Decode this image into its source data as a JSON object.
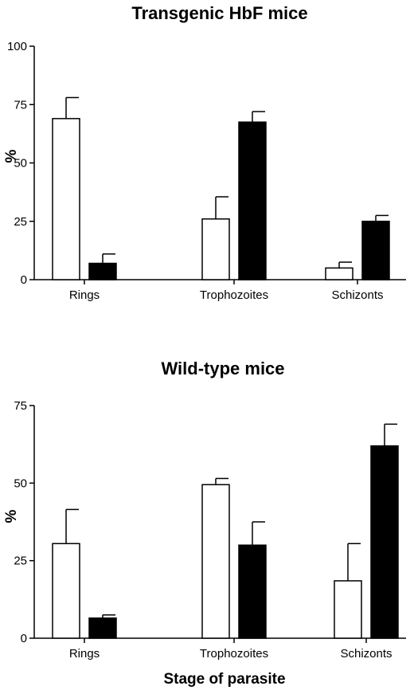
{
  "chart_data": [
    {
      "type": "bar",
      "title": "Transgenic HbF mice",
      "ylabel": "%",
      "xlabel": "",
      "ylim": [
        0,
        100
      ],
      "yticks": [
        0,
        25,
        50,
        75,
        100
      ],
      "categories": [
        "Rings",
        "Trophozoites",
        "Schizonts"
      ],
      "grid": false,
      "series": [
        {
          "color": "#ffffff",
          "values": [
            69,
            26,
            5
          ],
          "errors": [
            9,
            9.5,
            2.5
          ]
        },
        {
          "color": "#000000",
          "values": [
            7,
            67.5,
            25
          ],
          "errors": [
            4,
            4.5,
            2.5
          ]
        }
      ]
    },
    {
      "type": "bar",
      "title": "Wild-type mice",
      "ylabel": "%",
      "xlabel": "Stage of parasite",
      "ylim": [
        0,
        75
      ],
      "yticks": [
        0,
        25,
        50,
        75
      ],
      "categories": [
        "Rings",
        "Trophozoites",
        "Schizonts"
      ],
      "grid": false,
      "series": [
        {
          "color": "#ffffff",
          "values": [
            30.5,
            49.5,
            18.5
          ],
          "errors": [
            11,
            2,
            12
          ]
        },
        {
          "color": "#000000",
          "values": [
            6.5,
            30,
            62
          ],
          "errors": [
            1,
            7.5,
            7
          ]
        }
      ]
    }
  ]
}
